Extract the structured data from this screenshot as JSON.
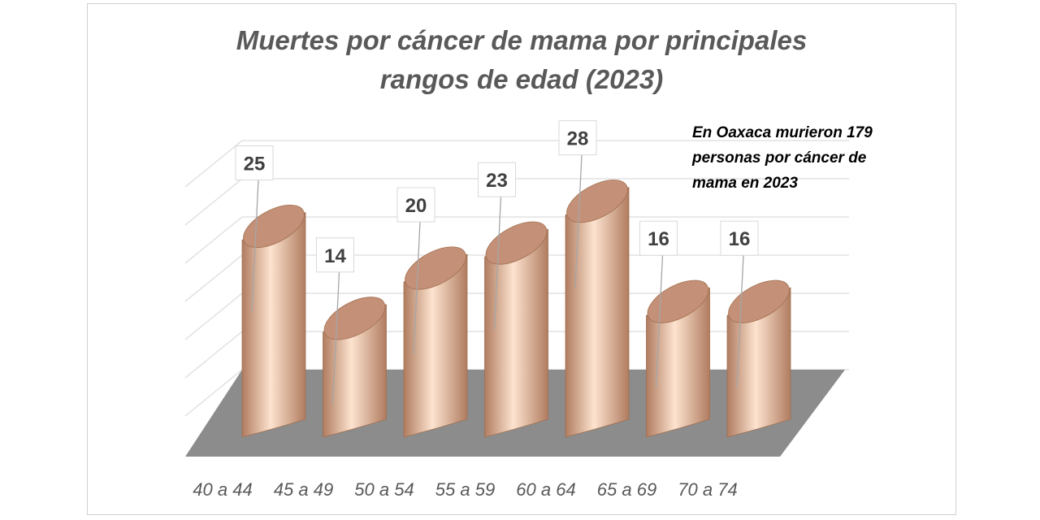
{
  "chart_data": {
    "type": "bar",
    "title": "Muertes por cáncer de mama por principales rangos de edad (2023)",
    "title_lines": [
      "Muertes por cáncer de mama por principales",
      "rangos de edad (2023)"
    ],
    "annotation_lines": [
      "En Oaxaca murieron 179",
      "personas por cáncer de",
      "mama en 2023"
    ],
    "categories": [
      "40 a 44",
      "45 a 49",
      "50 a 54",
      "55 a 59",
      "60 a 64",
      "65 a 69",
      "70 a 74"
    ],
    "values": [
      25,
      14,
      20,
      23,
      28,
      16,
      16
    ],
    "ylim": [
      0,
      28
    ],
    "grid": true,
    "legend": "none",
    "colors": {
      "cylinder_light": "#fde3cf",
      "cylinder_dark": "#b07c60",
      "cylinder_top": "#c49078",
      "floor": "#8c8c8c",
      "grid": "#e2e2e2",
      "text": "#595959",
      "label_border": "#d9d9d9"
    }
  }
}
